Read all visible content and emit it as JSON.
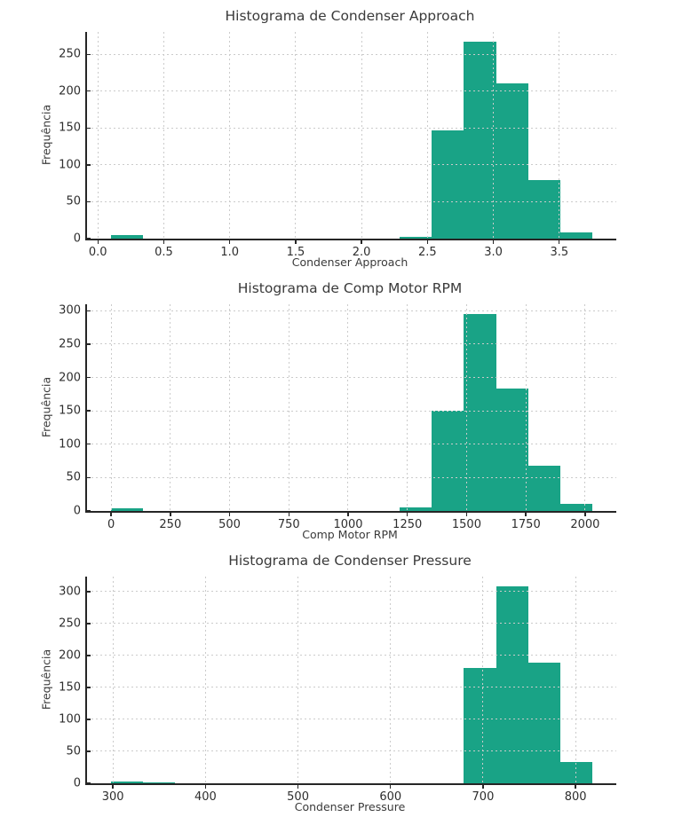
{
  "figure": {
    "background_color": "#ffffff",
    "grid_color": "#cbcbcb",
    "spine_color": "#262626",
    "text_color": "#3a3a3a"
  },
  "chart_data": [
    {
      "type": "bar",
      "subtype": "histogram",
      "title": "Histograma de Condenser Approach",
      "xlabel": "Condenser Approach",
      "ylabel": "Frequência",
      "bar_color": "#19a386",
      "bin_start": 0.1,
      "bin_width": 0.2433333,
      "counts": [
        5,
        0,
        0,
        0,
        0,
        0,
        0,
        0,
        0,
        2,
        147,
        267,
        211,
        79,
        8
      ],
      "xlim": [
        -0.0825,
        3.9325
      ],
      "ylim": [
        0,
        280.4
      ],
      "xticks": [
        0.0,
        0.5,
        1.0,
        1.5,
        2.0,
        2.5,
        3.0,
        3.5
      ],
      "xtick_labels": [
        "0.0",
        "0.5",
        "1.0",
        "1.5",
        "2.0",
        "2.5",
        "3.0",
        "3.5"
      ],
      "yticks": [
        0,
        50,
        100,
        150,
        200,
        250
      ],
      "ytick_labels": [
        "0",
        "50",
        "100",
        "150",
        "200",
        "250"
      ],
      "grid": true,
      "legend": null
    },
    {
      "type": "bar",
      "subtype": "histogram",
      "title": "Histograma de Comp Motor RPM",
      "xlabel": "Comp Motor RPM",
      "ylabel": "Frequência",
      "bar_color": "#19a386",
      "bin_start": 0,
      "bin_width": 135.3333,
      "counts": [
        4,
        0,
        0,
        0,
        0,
        0,
        0,
        0,
        0,
        6,
        150,
        295,
        183,
        68,
        11
      ],
      "xlim": [
        -101.5,
        2131.5
      ],
      "ylim": [
        0,
        309.8
      ],
      "xticks": [
        0,
        250,
        500,
        750,
        1000,
        1250,
        1500,
        1750,
        2000
      ],
      "xtick_labels": [
        "0",
        "250",
        "500",
        "750",
        "1000",
        "1250",
        "1500",
        "1750",
        "2000"
      ],
      "yticks": [
        0,
        50,
        100,
        150,
        200,
        250,
        300
      ],
      "ytick_labels": [
        "0",
        "50",
        "100",
        "150",
        "200",
        "250",
        "300"
      ],
      "grid": true,
      "legend": null
    },
    {
      "type": "bar",
      "subtype": "histogram",
      "title": "Histograma de Condenser Pressure",
      "xlabel": "Condenser Pressure",
      "ylabel": "Frequência",
      "bar_color": "#19a386",
      "bin_start": 298,
      "bin_width": 34.6667,
      "counts": [
        3,
        2,
        0,
        0,
        0,
        0,
        0,
        0,
        0,
        0,
        0,
        181,
        308,
        189,
        34
      ],
      "xlim": [
        272,
        844
      ],
      "ylim": [
        0,
        323.4
      ],
      "xticks": [
        300,
        400,
        500,
        600,
        700,
        800
      ],
      "xtick_labels": [
        "300",
        "400",
        "500",
        "600",
        "700",
        "800"
      ],
      "yticks": [
        0,
        50,
        100,
        150,
        200,
        250,
        300
      ],
      "ytick_labels": [
        "0",
        "50",
        "100",
        "150",
        "200",
        "250",
        "300"
      ],
      "grid": true,
      "legend": null
    }
  ]
}
